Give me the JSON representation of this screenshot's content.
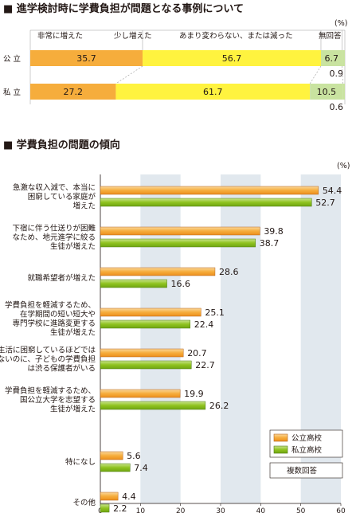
{
  "section1": {
    "title": "■ 進学検討時に学費負担が問題となる事例について",
    "headers": [
      "非常に増えた",
      "少し増えた",
      "あまり変わらない、または減った",
      "無回答"
    ],
    "unit": "(%)"
  },
  "section2": {
    "title": "■ 学費負担の問題の傾向",
    "unit": "(%)",
    "legend_note": "複数回答"
  },
  "colors": {
    "orange": "#f6ad3c",
    "yellow": "#fff33f",
    "green": "#8fc31f",
    "light_green": "#c9e3a0",
    "band": "#e1e8ee"
  },
  "chart_data": [
    {
      "type": "bar",
      "stacked": true,
      "orientation": "horizontal",
      "categories": [
        "公 立",
        "私 立"
      ],
      "series": [
        {
          "name": "非常に増えた",
          "values": [
            35.7,
            27.2
          ]
        },
        {
          "name": "少し増えた",
          "values": [
            56.7,
            61.7
          ]
        },
        {
          "name": "あまり変わらない、または減った",
          "values": [
            6.7,
            10.5
          ]
        },
        {
          "name": "無回答",
          "values": [
            0.9,
            0.6
          ]
        }
      ]
    },
    {
      "type": "bar",
      "orientation": "horizontal",
      "categories": [
        [
          "急激な収入減で、本当に",
          "困窮している家庭が",
          "増えた"
        ],
        [
          "下宿に伴う仕送りが困難",
          "なため、地元進学に絞る",
          "生徒が増えた"
        ],
        [
          "就職希望者が増えた"
        ],
        [
          "学費負担を軽減するため、",
          "在学期間の短い短大や",
          "専門学校に進路変更する",
          "生徒が増えた"
        ],
        [
          "生活に困窮しているほどでは",
          "ないのに、子どもの学費負担",
          "は渋る保護者がいる"
        ],
        [
          "学費負担を軽減するため、",
          "国公立大学を志望する",
          "生徒が増えた"
        ],
        [
          "特になし"
        ],
        [
          "その他"
        ]
      ],
      "series": [
        {
          "name": "公立高校",
          "values": [
            54.4,
            39.8,
            28.6,
            25.1,
            20.7,
            19.9,
            5.6,
            4.4
          ]
        },
        {
          "name": "私立高校",
          "values": [
            52.7,
            38.7,
            16.6,
            22.4,
            22.7,
            26.2,
            7.4,
            2.2
          ]
        }
      ],
      "xlim": [
        0,
        60
      ],
      "xticks": [
        0,
        10,
        20,
        30,
        40,
        50,
        60
      ]
    }
  ]
}
